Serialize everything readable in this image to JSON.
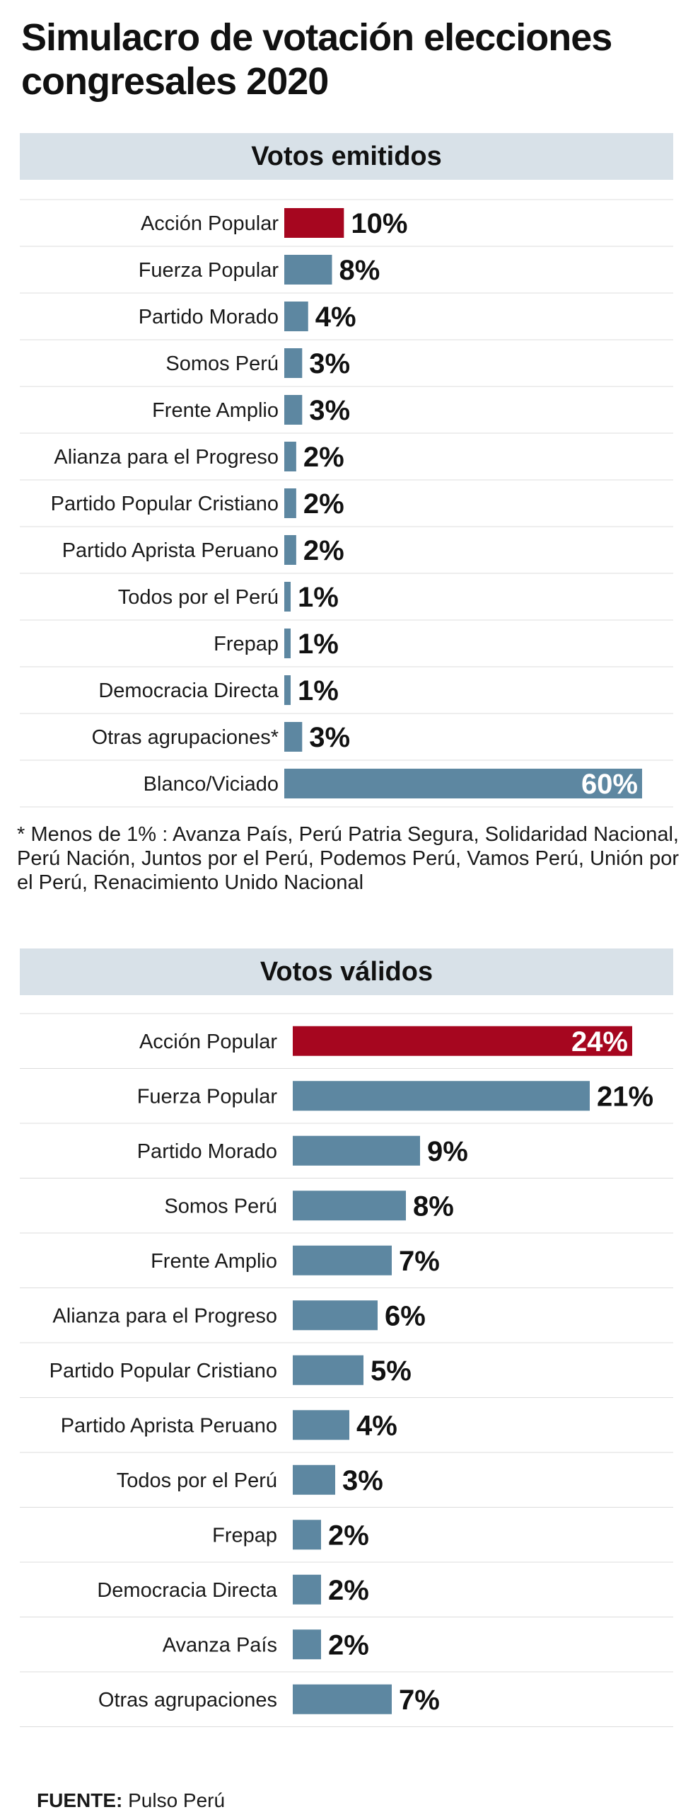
{
  "title": "Simulacro de votación elecciones congresales 2020",
  "colors": {
    "highlight": "#a6061f",
    "bar": "#5d87a1",
    "header_bg": "#d8e1e8",
    "divider": "#dcdcdc"
  },
  "chart_data": [
    {
      "type": "bar",
      "orientation": "horizontal",
      "title": "Votos emitidos",
      "unit": "%",
      "categories": [
        "Acción Popular",
        "Fuerza Popular",
        "Partido Morado",
        "Somos Perú",
        "Frente Amplio",
        "Alianza para el Progreso",
        "Partido Popular Cristiano",
        "Partido Aprista Peruano",
        "Todos por el Perú",
        "Frepap",
        "Democracia Directa",
        "Otras agrupaciones*",
        "Blanco/Viciado"
      ],
      "values": [
        10,
        8,
        4,
        3,
        3,
        2,
        2,
        2,
        1,
        1,
        1,
        3,
        60
      ],
      "labels": [
        "10%",
        "8%",
        "4%",
        "3%",
        "3%",
        "2%",
        "2%",
        "2%",
        "1%",
        "1%",
        "1%",
        "3%",
        "60%"
      ],
      "highlight": [
        "Acción Popular"
      ],
      "xlim": [
        0,
        60
      ]
    },
    {
      "type": "bar",
      "orientation": "horizontal",
      "title": "Votos válidos",
      "unit": "%",
      "categories": [
        "Acción Popular",
        "Fuerza Popular",
        "Partido Morado",
        "Somos Perú",
        "Frente Amplio",
        "Alianza para el Progreso",
        "Partido Popular Cristiano",
        "Partido Aprista Peruano",
        "Todos por el Perú",
        "Frepap",
        "Democracia Directa",
        "Avanza País",
        "Otras agrupaciones"
      ],
      "values": [
        24,
        21,
        9,
        8,
        7,
        6,
        5,
        4,
        3,
        2,
        2,
        2,
        7
      ],
      "labels": [
        "24%",
        "21%",
        "9%",
        "8%",
        "7%",
        "6%",
        "5%",
        "4%",
        "3%",
        "2%",
        "2%",
        "2%",
        "7%"
      ],
      "highlight": [
        "Acción Popular"
      ],
      "xlim": [
        0,
        24
      ]
    }
  ],
  "footnote": "* Menos de 1% : Avanza País, Perú Patria Segura, Solidaridad Nacional, Perú Nación, Juntos por el Perú, Podemos Perú, Vamos Perú, Unión por el Perú, Renacimiento Unido Nacional",
  "source": {
    "label": "FUENTE:",
    "text": "Pulso Perú"
  }
}
